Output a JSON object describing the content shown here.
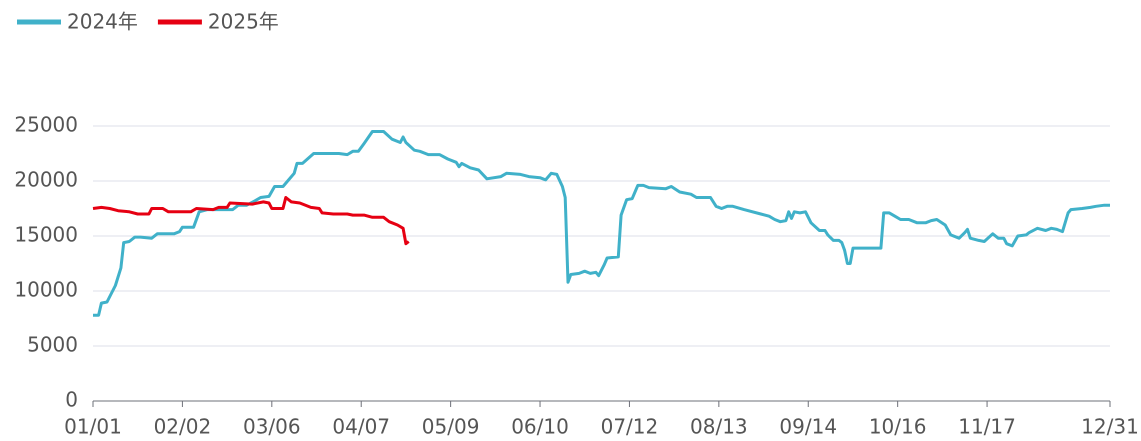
{
  "chart_data": {
    "type": "line",
    "legend": "top-left",
    "grid": true,
    "ylim": [
      0,
      25000
    ],
    "yticks": [
      0,
      5000,
      10000,
      15000,
      20000,
      25000
    ],
    "xlim": [
      "01/01",
      "12/31"
    ],
    "xticks": [
      "01/01",
      "02/02",
      "03/06",
      "04/07",
      "05/09",
      "06/10",
      "07/12",
      "08/13",
      "09/14",
      "10/16",
      "11/17",
      "12/31"
    ],
    "series": [
      {
        "name": "2024年",
        "color": "#40b1c9",
        "x": [
          "01/01",
          "01/03",
          "01/04",
          "01/06",
          "01/09",
          "01/11",
          "01/12",
          "01/14",
          "01/16",
          "01/18",
          "01/22",
          "01/24",
          "01/30",
          "02/01",
          "02/02",
          "02/06",
          "02/08",
          "02/11",
          "02/20",
          "02/22",
          "02/25",
          "02/28",
          "03/02",
          "03/05",
          "03/07",
          "03/10",
          "03/14",
          "03/15",
          "03/17",
          "03/21",
          "03/30",
          "04/02",
          "04/04",
          "04/06",
          "04/08",
          "04/11",
          "04/15",
          "04/18",
          "04/21",
          "04/22",
          "04/23",
          "04/26",
          "04/28",
          "05/01",
          "05/05",
          "05/08",
          "05/11",
          "05/12",
          "05/13",
          "05/16",
          "05/19",
          "05/22",
          "05/27",
          "05/29",
          "06/03",
          "06/06",
          "06/10",
          "06/12",
          "06/14",
          "06/16",
          "06/18",
          "06/19",
          "06/20",
          "06/21",
          "06/24",
          "06/26",
          "06/28",
          "06/30",
          "07/01",
          "07/03",
          "07/04",
          "07/08",
          "07/09",
          "07/11",
          "07/13",
          "07/15",
          "07/17",
          "07/19",
          "07/25",
          "07/27",
          "07/30",
          "08/03",
          "08/05",
          "08/10",
          "08/12",
          "08/14",
          "08/16",
          "08/18",
          "08/22",
          "08/28",
          "08/31",
          "09/02",
          "09/04",
          "09/06",
          "09/07",
          "09/08",
          "09/09",
          "09/11",
          "09/13",
          "09/15",
          "09/18",
          "09/20",
          "09/21",
          "09/23",
          "09/25",
          "09/26",
          "09/27",
          "09/28",
          "09/29",
          "09/30",
          "10/10",
          "10/11",
          "10/13",
          "10/15",
          "10/17",
          "10/20",
          "10/23",
          "10/26",
          "10/28",
          "10/30",
          "11/02",
          "11/04",
          "11/07",
          "11/09",
          "11/10",
          "11/11",
          "11/14",
          "11/16",
          "11/19",
          "11/21",
          "11/23",
          "11/24",
          "11/26",
          "11/28",
          "12/01",
          "12/02",
          "12/05",
          "12/08",
          "12/10",
          "12/12",
          "12/14",
          "12/16",
          "12/17",
          "12/21",
          "12/24",
          "12/26",
          "12/29",
          "12/31"
        ],
        "values": [
          7800,
          7800,
          8900,
          9000,
          10500,
          12100,
          14400,
          14500,
          14900,
          14900,
          14800,
          15200,
          15200,
          15400,
          15800,
          15800,
          17200,
          17400,
          17400,
          17800,
          17800,
          18200,
          18500,
          18600,
          19500,
          19500,
          20700,
          21600,
          21600,
          22500,
          22500,
          22400,
          22700,
          22700,
          23400,
          24500,
          24500,
          23800,
          23500,
          24000,
          23500,
          22800,
          22700,
          22400,
          22400,
          22000,
          21700,
          21300,
          21600,
          21200,
          21000,
          20200,
          20400,
          20700,
          20600,
          20400,
          20300,
          20100,
          20700,
          20600,
          19500,
          18500,
          10800,
          11500,
          11600,
          11800,
          11600,
          11700,
          11400,
          12400,
          13000,
          13100,
          16900,
          18300,
          18400,
          19600,
          19600,
          19400,
          19300,
          19500,
          19000,
          18800,
          18500,
          18500,
          17700,
          17500,
          17700,
          17700,
          17400,
          17000,
          16800,
          16500,
          16300,
          16400,
          17200,
          16600,
          17200,
          17100,
          17200,
          16200,
          15500,
          15500,
          15100,
          14600,
          14600,
          14400,
          13700,
          12500,
          12500,
          13900,
          13900,
          17100,
          17100,
          16800,
          16500,
          16500,
          16200,
          16200,
          16400,
          16500,
          16000,
          15100,
          14800,
          15300,
          15600,
          14800,
          14600,
          14500,
          15200,
          14800,
          14800,
          14300,
          14100,
          15000,
          15100,
          15300,
          15700,
          15500,
          15700,
          15600,
          15400,
          17100,
          17400,
          17500,
          17600,
          17700,
          17800,
          17800
        ]
      },
      {
        "name": "2025年",
        "color": "#e60012",
        "x": [
          "01/01",
          "01/04",
          "01/07",
          "01/10",
          "01/14",
          "01/17",
          "01/21",
          "01/22",
          "01/26",
          "01/28",
          "02/05",
          "02/07",
          "02/13",
          "02/15",
          "02/18",
          "02/19",
          "02/27",
          "03/03",
          "03/05",
          "03/06",
          "03/10",
          "03/11",
          "03/13",
          "03/16",
          "03/20",
          "03/23",
          "03/24",
          "03/28",
          "04/02",
          "04/04",
          "04/08",
          "04/11",
          "04/15",
          "04/17",
          "04/20",
          "04/22",
          "04/23",
          "04/24"
        ],
        "values": [
          17500,
          17600,
          17500,
          17300,
          17200,
          17000,
          17000,
          17500,
          17500,
          17200,
          17200,
          17500,
          17400,
          17600,
          17600,
          18000,
          17900,
          18100,
          18000,
          17500,
          17500,
          18500,
          18100,
          18000,
          17600,
          17500,
          17100,
          17000,
          17000,
          16900,
          16900,
          16700,
          16700,
          16300,
          16000,
          15700,
          14300,
          14500
        ]
      }
    ]
  }
}
